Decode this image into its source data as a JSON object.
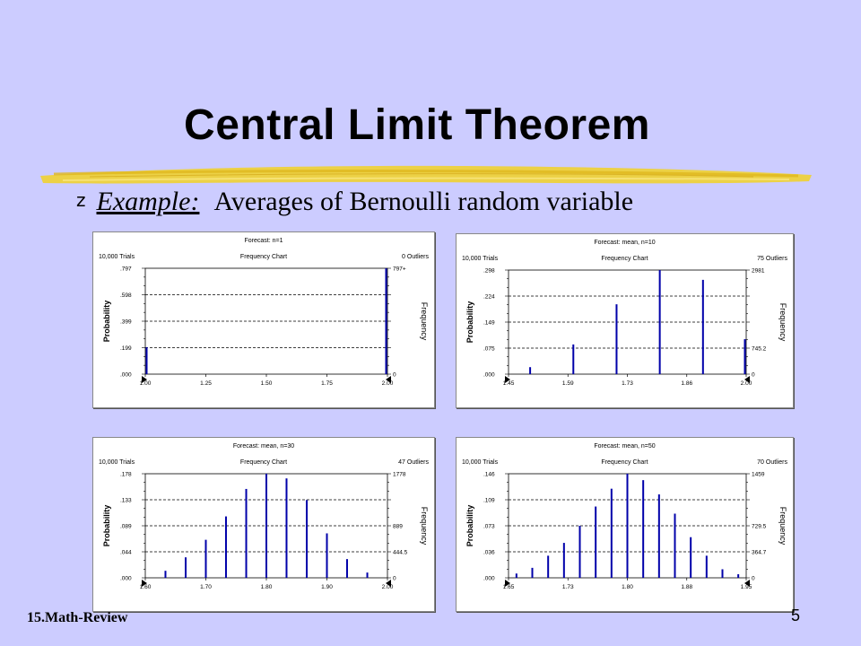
{
  "slide": {
    "title": "Central Limit Theorem",
    "bullet_marker": "z",
    "example_label": "Example:",
    "example_text": "Averages of Bernoulli random variable",
    "footer_left": "15.Math-Review",
    "page_number": "5"
  },
  "colors": {
    "background": "#ccccff",
    "bar": "#0000aa",
    "brush": "#f0d232",
    "panel": "#ffffff"
  },
  "chart_data": [
    {
      "type": "bar",
      "title": "Forecast: n=1",
      "subtitle": "Frequency Chart",
      "trials_label": "10,000 Trials",
      "outliers_label": "0 Outliers",
      "ylabel": "Probability",
      "y2label": "Frequency",
      "yticks": [
        ".000",
        ".199",
        ".399",
        ".598",
        ".797"
      ],
      "y2ticks": [
        "0",
        "",
        "",
        "",
        "797+"
      ],
      "xticks": [
        "1.00",
        "1.25",
        "1.50",
        "1.75",
        "2.00"
      ],
      "xlim": [
        1.0,
        2.0
      ],
      "ylim": [
        0,
        0.797
      ],
      "x": [
        1.0,
        2.0
      ],
      "values": [
        0.203,
        0.797
      ]
    },
    {
      "type": "bar",
      "title": "Forecast: mean, n=10",
      "subtitle": "Frequency Chart",
      "trials_label": "10,000 Trials",
      "outliers_label": "75 Outliers",
      "ylabel": "Probability",
      "y2label": "Frequency",
      "yticks": [
        ".000",
        ".075",
        ".149",
        ".224",
        ".298"
      ],
      "y2ticks": [
        "0",
        "745.2",
        "",
        "",
        "2981"
      ],
      "xticks": [
        "1.45",
        "1.59",
        "1.73",
        "1.86",
        "2.00"
      ],
      "xlim": [
        1.45,
        2.0
      ],
      "ylim": [
        0,
        0.298
      ],
      "x": [
        1.5,
        1.6,
        1.7,
        1.8,
        1.9,
        2.0
      ],
      "values": [
        0.02,
        0.085,
        0.2,
        0.298,
        0.27,
        0.1
      ]
    },
    {
      "type": "bar",
      "title": "Forecast: mean, n=30",
      "subtitle": "Frequency Chart",
      "trials_label": "10,000 Trials",
      "outliers_label": "47 Outliers",
      "ylabel": "Probability",
      "y2label": "Frequency",
      "yticks": [
        ".000",
        ".044",
        ".089",
        ".133",
        ".178"
      ],
      "y2ticks": [
        "0",
        "444.5",
        "889",
        "",
        "1778"
      ],
      "xticks": [
        "1.60",
        "1.70",
        "1.80",
        "1.90",
        "2.00"
      ],
      "xlim": [
        1.6,
        2.0
      ],
      "ylim": [
        0,
        0.178
      ],
      "x": [
        1.6333,
        1.6667,
        1.7,
        1.7333,
        1.7667,
        1.8,
        1.8333,
        1.8667,
        1.9,
        1.9333,
        1.9667
      ],
      "values": [
        0.012,
        0.035,
        0.065,
        0.105,
        0.152,
        0.178,
        0.17,
        0.133,
        0.076,
        0.032,
        0.009
      ]
    },
    {
      "type": "bar",
      "title": "Forecast: mean, n=50",
      "subtitle": "Frequency Chart",
      "trials_label": "10,000 Trials",
      "outliers_label": "70 Outliers",
      "ylabel": "Probability",
      "y2label": "Frequency",
      "yticks": [
        ".000",
        ".036",
        ".073",
        ".109",
        ".146"
      ],
      "y2ticks": [
        "0",
        "364.7",
        "729.5",
        "",
        "1459"
      ],
      "xticks": [
        "1.65",
        "1.73",
        "1.80",
        "1.88",
        "1.95"
      ],
      "xlim": [
        1.65,
        1.95
      ],
      "ylim": [
        0,
        0.146
      ],
      "x": [
        1.66,
        1.68,
        1.7,
        1.72,
        1.74,
        1.76,
        1.78,
        1.8,
        1.82,
        1.84,
        1.86,
        1.88,
        1.9,
        1.92,
        1.94
      ],
      "values": [
        0.006,
        0.014,
        0.031,
        0.049,
        0.073,
        0.1,
        0.125,
        0.146,
        0.137,
        0.117,
        0.09,
        0.057,
        0.031,
        0.012,
        0.005
      ]
    }
  ]
}
